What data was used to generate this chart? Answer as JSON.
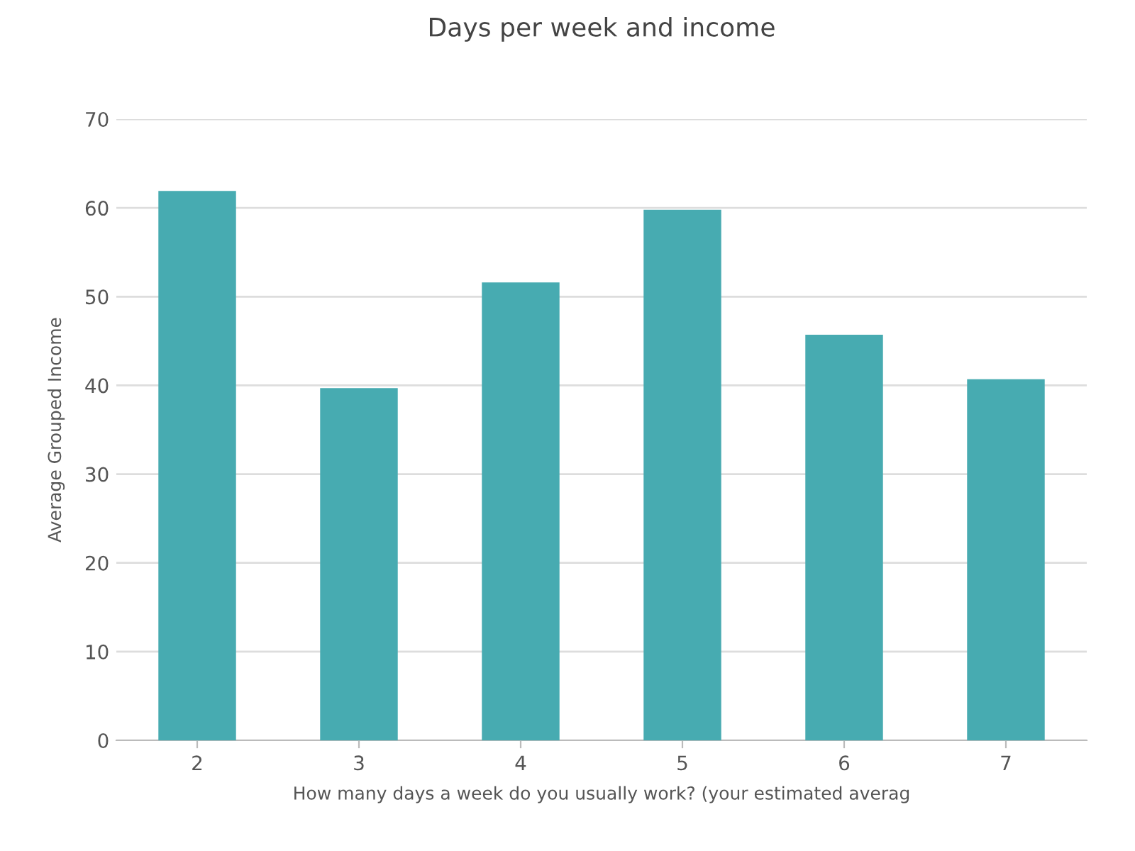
{
  "chart_data": {
    "type": "bar",
    "title": "Days per week and income",
    "xlabel": "How many days a week do you usually work? (your estimated averag",
    "ylabel": "Average Grouped Income",
    "categories": [
      "2",
      "3",
      "4",
      "5",
      "6",
      "7"
    ],
    "values": [
      61.9,
      39.7,
      51.6,
      59.8,
      45.7,
      40.7
    ],
    "color": "#47abb1",
    "ylim": [
      0,
      70
    ],
    "yticks": [
      0,
      10,
      20,
      30,
      40,
      50,
      60,
      70
    ],
    "grid": "y"
  }
}
